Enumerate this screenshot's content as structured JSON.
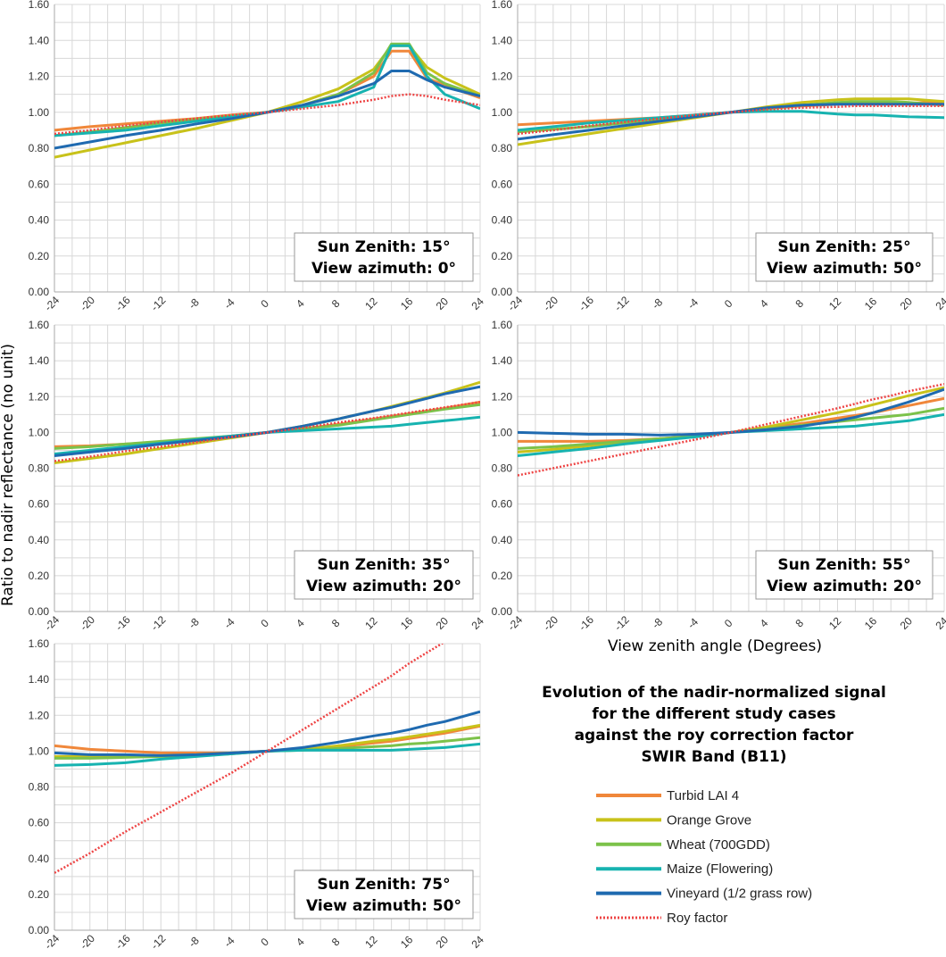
{
  "figure": {
    "title_lines": [
      "Evolution of the nadir-normalized signal",
      "for the different study cases",
      "against the roy correction factor",
      "SWIR Band (B11)"
    ],
    "ylabel": "Ratio to nadir reflectance (no unit)",
    "xlabel": "View zenith angle (Degrees)"
  },
  "colors": {
    "Turbid LAI 4": "#f0873a",
    "Orange Grove": "#c8c21a",
    "Wheat (700GDD)": "#7cc24a",
    "Maize (Flowering)": "#17b3b0",
    "Vineyard (1/2 grass row)": "#1f6ab0",
    "Roy factor": "#ee4444",
    "grid": "#d8d8d8",
    "axis": "#aaaaaa"
  },
  "legend": [
    {
      "label": "Turbid LAI 4",
      "style": "solid"
    },
    {
      "label": "Orange Grove",
      "style": "solid"
    },
    {
      "label": "Wheat (700GDD)",
      "style": "solid"
    },
    {
      "label": "Maize (Flowering)",
      "style": "solid"
    },
    {
      "label": "Vineyard (1/2 grass row)",
      "style": "solid"
    },
    {
      "label": "Roy factor",
      "style": "dotted"
    }
  ],
  "chart_data": [
    {
      "type": "line",
      "annotation": [
        "Sun Zenith: 15°",
        "View azimuth: 0°"
      ],
      "x": [
        -24,
        -20,
        -16,
        -12,
        -8,
        -4,
        0,
        4,
        8,
        12,
        14,
        16,
        18,
        20,
        24
      ],
      "ylim": [
        0,
        1.6
      ],
      "xlim": [
        -24,
        24
      ],
      "x_ticks": [
        "-24",
        "-20",
        "-16",
        "-12",
        "-8",
        "-4",
        "0",
        "4",
        "8",
        "12",
        "16",
        "20",
        "24"
      ],
      "y_ticks": [
        "0.00",
        "0.20",
        "0.40",
        "0.60",
        "0.80",
        "1.00",
        "1.20",
        "1.40",
        "1.60"
      ],
      "grid": true,
      "series": [
        {
          "name": "Turbid LAI 4",
          "values": [
            0.9,
            0.92,
            0.935,
            0.95,
            0.965,
            0.985,
            1.0,
            1.04,
            1.1,
            1.2,
            1.34,
            1.34,
            1.19,
            1.15,
            1.08
          ]
        },
        {
          "name": "Orange Grove",
          "values": [
            0.75,
            0.79,
            0.83,
            0.87,
            0.91,
            0.955,
            1.0,
            1.06,
            1.13,
            1.24,
            1.37,
            1.37,
            1.25,
            1.19,
            1.1
          ]
        },
        {
          "name": "Wheat (700GDD)",
          "values": [
            0.87,
            0.89,
            0.915,
            0.94,
            0.96,
            0.98,
            1.0,
            1.04,
            1.1,
            1.22,
            1.38,
            1.38,
            1.22,
            1.16,
            1.09
          ]
        },
        {
          "name": "Maize (Flowering)",
          "values": [
            0.87,
            0.885,
            0.9,
            0.925,
            0.95,
            0.975,
            1.0,
            1.03,
            1.06,
            1.14,
            1.37,
            1.37,
            1.2,
            1.1,
            1.02
          ]
        },
        {
          "name": "Vineyard (1/2 grass row)",
          "values": [
            0.8,
            0.835,
            0.87,
            0.9,
            0.935,
            0.965,
            1.0,
            1.04,
            1.09,
            1.16,
            1.23,
            1.23,
            1.18,
            1.14,
            1.09
          ]
        },
        {
          "name": "Roy factor",
          "values": [
            0.88,
            0.9,
            0.925,
            0.945,
            0.965,
            0.985,
            1.0,
            1.02,
            1.04,
            1.07,
            1.09,
            1.1,
            1.09,
            1.07,
            1.04
          ]
        }
      ]
    },
    {
      "type": "line",
      "annotation": [
        "Sun Zenith: 25°",
        "View azimuth: 50°"
      ],
      "x": [
        -24,
        -20,
        -16,
        -12,
        -8,
        -4,
        0,
        4,
        8,
        12,
        14,
        16,
        18,
        20,
        24
      ],
      "ylim": [
        0,
        1.6
      ],
      "xlim": [
        -24,
        24
      ],
      "x_ticks": [
        "-24",
        "-20",
        "-16",
        "-12",
        "-8",
        "-4",
        "0",
        "4",
        "8",
        "12",
        "16",
        "20",
        "24"
      ],
      "y_ticks": [
        "0.00",
        "0.20",
        "0.40",
        "0.60",
        "0.80",
        "1.00",
        "1.20",
        "1.40",
        "1.60"
      ],
      "grid": true,
      "series": [
        {
          "name": "Turbid LAI 4",
          "values": [
            0.93,
            0.94,
            0.95,
            0.96,
            0.97,
            0.985,
            1.0,
            1.02,
            1.035,
            1.045,
            1.05,
            1.05,
            1.05,
            1.05,
            1.06
          ]
        },
        {
          "name": "Orange Grove",
          "values": [
            0.82,
            0.85,
            0.88,
            0.91,
            0.94,
            0.97,
            1.0,
            1.03,
            1.055,
            1.07,
            1.075,
            1.075,
            1.075,
            1.075,
            1.06
          ]
        },
        {
          "name": "Wheat (700GDD)",
          "values": [
            0.89,
            0.905,
            0.92,
            0.94,
            0.96,
            0.98,
            1.0,
            1.02,
            1.04,
            1.055,
            1.06,
            1.06,
            1.06,
            1.055,
            1.04
          ]
        },
        {
          "name": "Maize (Flowering)",
          "values": [
            0.9,
            0.92,
            0.94,
            0.955,
            0.97,
            0.985,
            1.0,
            1.005,
            1.005,
            0.99,
            0.985,
            0.985,
            0.98,
            0.975,
            0.97
          ]
        },
        {
          "name": "Vineyard (1/2 grass row)",
          "values": [
            0.85,
            0.875,
            0.9,
            0.925,
            0.95,
            0.975,
            1.0,
            1.025,
            1.04,
            1.045,
            1.045,
            1.045,
            1.045,
            1.045,
            1.045
          ]
        },
        {
          "name": "Roy factor",
          "values": [
            0.88,
            0.9,
            0.925,
            0.945,
            0.965,
            0.985,
            1.0,
            1.015,
            1.025,
            1.03,
            1.035,
            1.035,
            1.035,
            1.035,
            1.035
          ]
        }
      ]
    },
    {
      "type": "line",
      "annotation": [
        "Sun Zenith: 35°",
        "View azimuth: 20°"
      ],
      "x": [
        -24,
        -20,
        -16,
        -12,
        -8,
        -4,
        0,
        4,
        8,
        12,
        14,
        16,
        18,
        20,
        24
      ],
      "ylim": [
        0,
        1.6
      ],
      "xlim": [
        -24,
        24
      ],
      "x_ticks": [
        "-24",
        "-20",
        "-16",
        "-12",
        "-8",
        "-4",
        "0",
        "4",
        "8",
        "12",
        "16",
        "20",
        "24"
      ],
      "y_ticks": [
        "0.00",
        "0.20",
        "0.40",
        "0.60",
        "0.80",
        "1.00",
        "1.20",
        "1.40",
        "1.60"
      ],
      "grid": true,
      "series": [
        {
          "name": "Turbid LAI 4",
          "values": [
            0.92,
            0.925,
            0.935,
            0.945,
            0.96,
            0.98,
            1.0,
            1.02,
            1.045,
            1.075,
            1.09,
            1.105,
            1.12,
            1.135,
            1.17
          ]
        },
        {
          "name": "Orange Grove",
          "values": [
            0.83,
            0.855,
            0.88,
            0.91,
            0.94,
            0.97,
            1.0,
            1.035,
            1.075,
            1.12,
            1.145,
            1.17,
            1.195,
            1.22,
            1.28
          ]
        },
        {
          "name": "Wheat (700GDD)",
          "values": [
            0.91,
            0.92,
            0.935,
            0.95,
            0.965,
            0.98,
            1.0,
            1.02,
            1.04,
            1.07,
            1.085,
            1.1,
            1.115,
            1.13,
            1.155
          ]
        },
        {
          "name": "Maize (Flowering)",
          "values": [
            0.88,
            0.9,
            0.92,
            0.94,
            0.96,
            0.98,
            1.0,
            1.01,
            1.02,
            1.03,
            1.035,
            1.045,
            1.055,
            1.065,
            1.085
          ]
        },
        {
          "name": "Vineyard (1/2 grass row)",
          "values": [
            0.87,
            0.89,
            0.91,
            0.935,
            0.955,
            0.975,
            1.0,
            1.035,
            1.075,
            1.12,
            1.14,
            1.165,
            1.19,
            1.215,
            1.255
          ]
        },
        {
          "name": "Roy factor",
          "values": [
            0.84,
            0.865,
            0.895,
            0.92,
            0.945,
            0.975,
            1.0,
            1.025,
            1.055,
            1.08,
            1.095,
            1.11,
            1.125,
            1.14,
            1.17
          ]
        }
      ]
    },
    {
      "type": "line",
      "annotation": [
        "Sun Zenith: 55°",
        "View azimuth: 20°"
      ],
      "x": [
        -24,
        -20,
        -16,
        -12,
        -8,
        -4,
        0,
        4,
        8,
        12,
        14,
        16,
        18,
        20,
        24
      ],
      "ylim": [
        0,
        1.6
      ],
      "xlim": [
        -24,
        24
      ],
      "x_ticks": [
        "-24",
        "-20",
        "-16",
        "-12",
        "-8",
        "-4",
        "0",
        "4",
        "8",
        "12",
        "16",
        "20",
        "24"
      ],
      "y_ticks": [
        "0.00",
        "0.20",
        "0.40",
        "0.60",
        "0.80",
        "1.00",
        "1.20",
        "1.40",
        "1.60"
      ],
      "grid": true,
      "series": [
        {
          "name": "Turbid LAI 4",
          "values": [
            0.95,
            0.95,
            0.95,
            0.955,
            0.965,
            0.98,
            1.0,
            1.025,
            1.05,
            1.08,
            1.095,
            1.11,
            1.13,
            1.15,
            1.19
          ]
        },
        {
          "name": "Orange Grove",
          "values": [
            0.89,
            0.905,
            0.925,
            0.945,
            0.96,
            0.98,
            1.0,
            1.03,
            1.07,
            1.11,
            1.13,
            1.155,
            1.18,
            1.205,
            1.25
          ]
        },
        {
          "name": "Wheat (700GDD)",
          "values": [
            0.91,
            0.92,
            0.935,
            0.95,
            0.965,
            0.98,
            1.0,
            1.02,
            1.04,
            1.06,
            1.07,
            1.08,
            1.09,
            1.1,
            1.135
          ]
        },
        {
          "name": "Maize (Flowering)",
          "values": [
            0.87,
            0.89,
            0.91,
            0.935,
            0.955,
            0.975,
            1.0,
            1.01,
            1.02,
            1.03,
            1.035,
            1.045,
            1.055,
            1.065,
            1.1
          ]
        },
        {
          "name": "Vineyard (1/2 grass row)",
          "values": [
            1.0,
            0.995,
            0.99,
            0.99,
            0.985,
            0.99,
            1.0,
            1.015,
            1.035,
            1.065,
            1.085,
            1.11,
            1.14,
            1.17,
            1.24
          ]
        },
        {
          "name": "Roy factor",
          "values": [
            0.76,
            0.8,
            0.84,
            0.88,
            0.92,
            0.96,
            1.0,
            1.045,
            1.09,
            1.135,
            1.16,
            1.185,
            1.205,
            1.23,
            1.27
          ]
        }
      ]
    },
    {
      "type": "line",
      "annotation": [
        "Sun Zenith: 75°",
        "View azimuth: 50°"
      ],
      "x": [
        -24,
        -20,
        -16,
        -12,
        -8,
        -4,
        0,
        4,
        8,
        12,
        14,
        16,
        18,
        20,
        24
      ],
      "ylim": [
        0,
        1.6
      ],
      "xlim": [
        -24,
        24
      ],
      "x_ticks": [
        "-24",
        "-20",
        "-16",
        "-12",
        "-8",
        "-4",
        "0",
        "4",
        "8",
        "12",
        "16",
        "20",
        "24"
      ],
      "y_ticks": [
        "0.00",
        "0.20",
        "0.40",
        "0.60",
        "0.80",
        "1.00",
        "1.20",
        "1.40",
        "1.60"
      ],
      "grid": true,
      "series": [
        {
          "name": "Turbid LAI 4",
          "values": [
            1.03,
            1.01,
            1.0,
            0.99,
            0.99,
            0.99,
            1.0,
            1.01,
            1.025,
            1.045,
            1.055,
            1.07,
            1.085,
            1.1,
            1.14
          ]
        },
        {
          "name": "Orange Grove",
          "values": [
            0.97,
            0.97,
            0.97,
            0.975,
            0.98,
            0.99,
            1.0,
            1.01,
            1.03,
            1.055,
            1.065,
            1.08,
            1.095,
            1.11,
            1.145
          ]
        },
        {
          "name": "Wheat (700GDD)",
          "values": [
            0.96,
            0.96,
            0.965,
            0.97,
            0.975,
            0.985,
            1.0,
            1.005,
            1.015,
            1.025,
            1.03,
            1.04,
            1.045,
            1.055,
            1.075
          ]
        },
        {
          "name": "Maize (Flowering)",
          "values": [
            0.92,
            0.925,
            0.935,
            0.955,
            0.97,
            0.985,
            1.0,
            1.005,
            1.005,
            1.005,
            1.005,
            1.01,
            1.015,
            1.02,
            1.04
          ]
        },
        {
          "name": "Vineyard (1/2 grass row)",
          "values": [
            0.99,
            0.98,
            0.98,
            0.975,
            0.98,
            0.99,
            1.0,
            1.02,
            1.05,
            1.085,
            1.1,
            1.12,
            1.145,
            1.165,
            1.22
          ]
        },
        {
          "name": "Roy factor",
          "values": [
            0.32,
            0.43,
            0.55,
            0.66,
            0.77,
            0.88,
            1.0,
            1.12,
            1.24,
            1.36,
            1.42,
            1.49,
            1.55,
            1.61,
            1.72
          ]
        }
      ]
    }
  ]
}
